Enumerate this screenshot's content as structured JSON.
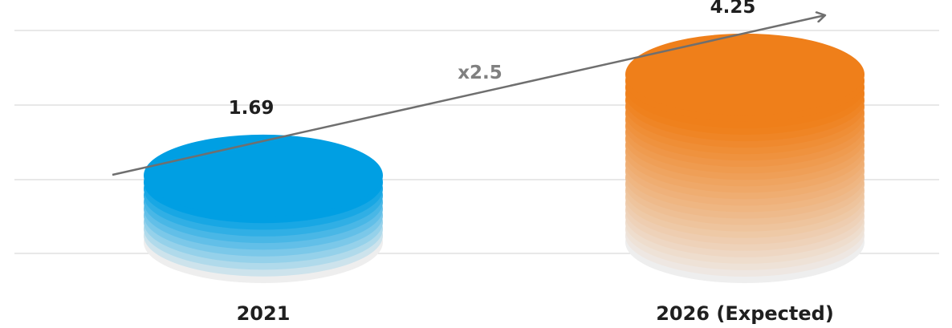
{
  "chart_data": {
    "type": "bar",
    "categories": [
      "2021",
      "2026 (Expected)"
    ],
    "values": [
      1.69,
      4.25
    ],
    "value_labels": [
      "1.69",
      "4.25"
    ],
    "growth_label": "x2.5",
    "colors": {
      "bars": [
        "#009fe3",
        "#ef7f1a"
      ],
      "fade": "#eeeeee",
      "grid": "#d9d9d9",
      "trend_arrow": "#6f6f6f",
      "text": "#1f1f1f",
      "growth_text": "#808080"
    },
    "grid": true,
    "legend": "none",
    "title": "",
    "xlabel": "",
    "ylabel": ""
  }
}
